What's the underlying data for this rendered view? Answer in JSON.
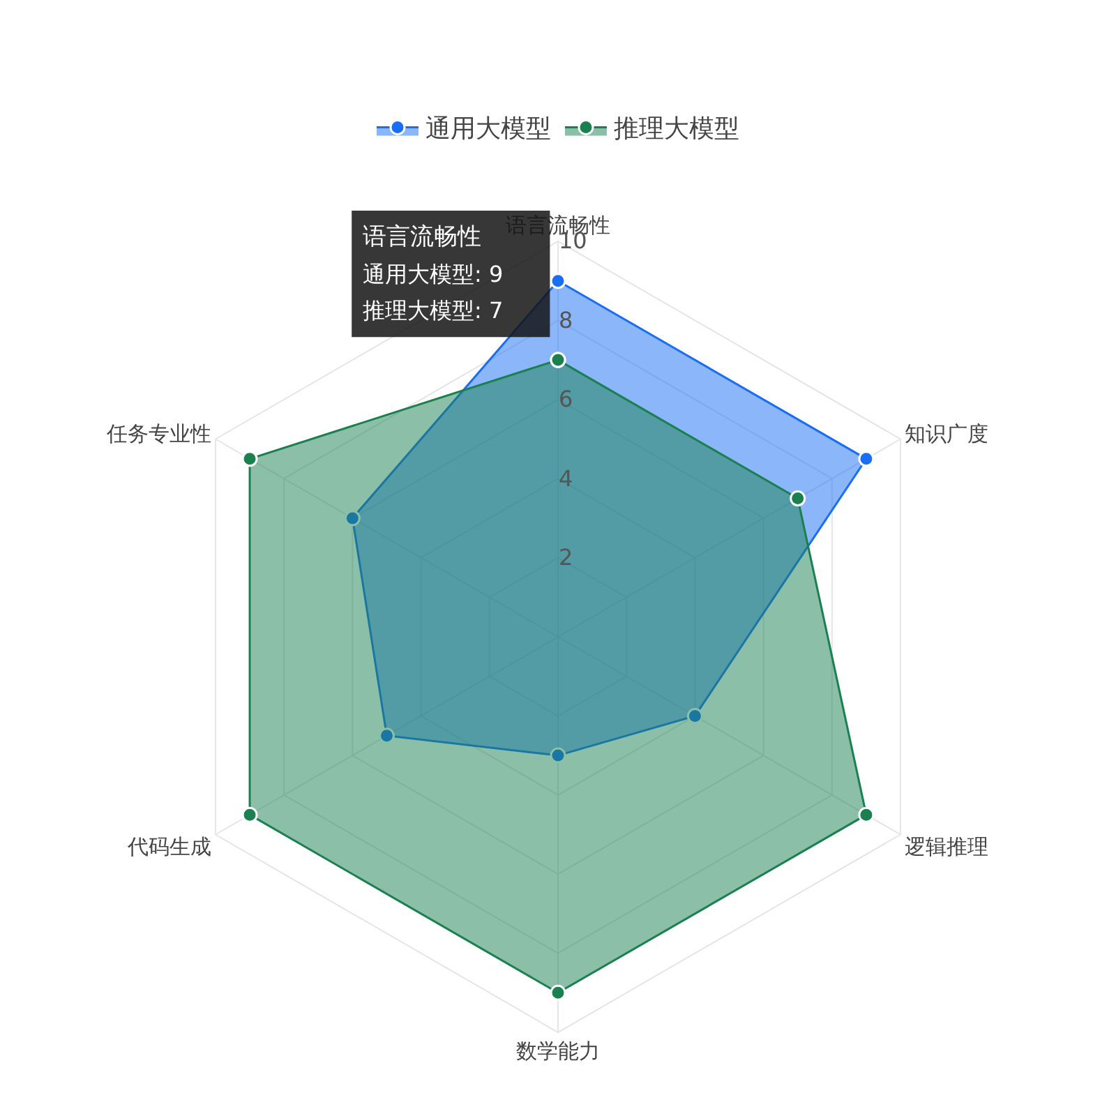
{
  "chart_data": {
    "type": "radar",
    "categories": [
      "语言流畅性",
      "知识广度",
      "逻辑推理",
      "数学能力",
      "代码生成",
      "任务专业性"
    ],
    "series": [
      {
        "name": "通用大模型",
        "color": "#1a6ef5",
        "values": [
          9,
          9,
          4,
          3,
          5,
          6
        ]
      },
      {
        "name": "推理大模型",
        "color": "#1a8050",
        "values": [
          7,
          7,
          9,
          9,
          9,
          9
        ]
      }
    ],
    "ylim": [
      0,
      10
    ],
    "yticks": [
      2,
      4,
      6,
      8,
      10
    ],
    "grid": true,
    "legend": "top",
    "marker": "circle",
    "annotations": [
      "语言流畅性",
      "通用大模型: 9",
      "推理大模型: 7"
    ]
  }
}
